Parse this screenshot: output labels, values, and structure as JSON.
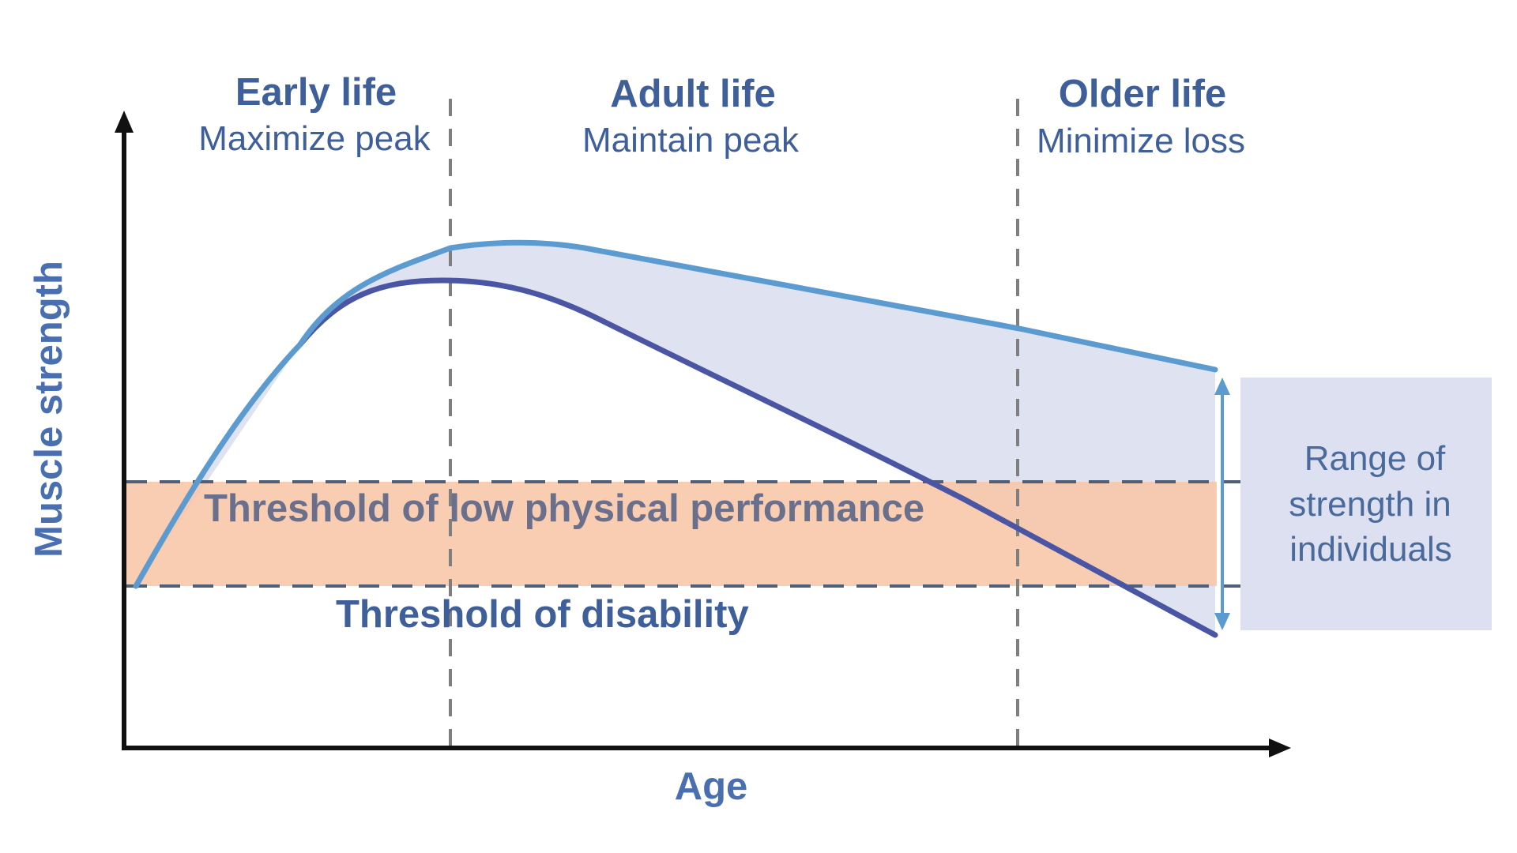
{
  "phases": [
    {
      "title": "Early life",
      "subtitle": "Maximize peak"
    },
    {
      "title": "Adult life",
      "subtitle": "Maintain peak"
    },
    {
      "title": "Older life",
      "subtitle": "Minimize loss"
    }
  ],
  "axes": {
    "x_label": "Age",
    "y_label": "Muscle strength"
  },
  "thresholds": {
    "low_performance": "Threshold of low physical performance",
    "disability": "Threshold of disability"
  },
  "range_box": {
    "lines": [
      "Range of",
      "strength in",
      "individuals"
    ]
  },
  "colors": {
    "upper_curve": "#5b9bd0",
    "lower_curve": "#4a56a4",
    "range_fill": "#dde0f0",
    "threshold_band": "#f7c8a8",
    "axis": "#111111",
    "dashed_divider": "#7f7f7f",
    "threshold_low_text": "#6a6f8c",
    "threshold_disability_text": "#3f5f9a",
    "range_arrow": "#5b9bd0"
  },
  "icons": {
    "y_axis_arrow": "arrow-up-icon",
    "x_axis_arrow": "arrow-right-icon",
    "range_arrow": "double-headed-vertical-arrow-icon"
  }
}
